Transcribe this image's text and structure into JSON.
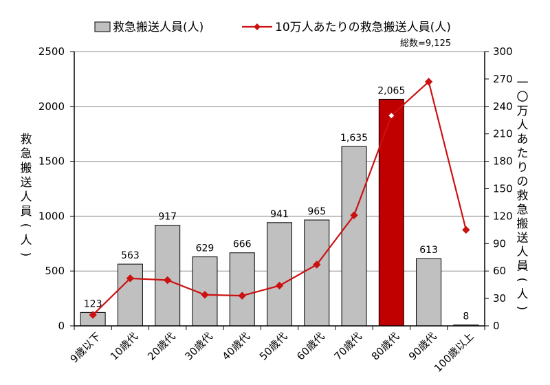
{
  "chart_data": {
    "type": "bar",
    "categories": [
      "9歳以下",
      "10歳代",
      "20歳代",
      "30歳代",
      "40歳代",
      "50歳代",
      "60歳代",
      "70歳代",
      "80歳代",
      "90歳代",
      "100歳以上"
    ],
    "series": [
      {
        "name": "救急搬送人員(人)",
        "type": "bar",
        "axis": "left",
        "values": [
          123,
          563,
          917,
          629,
          666,
          941,
          965,
          1635,
          2065,
          613,
          8
        ],
        "data_labels": [
          "123",
          "563",
          "917",
          "629",
          "666",
          "941",
          "965",
          "1,635",
          "2,065",
          "613",
          "8"
        ],
        "color": "#c0c0c0",
        "highlight_index": 8,
        "highlight_color": "#c00000"
      },
      {
        "name": "10万人あたりの救急搬送人員(人)",
        "type": "line",
        "axis": "right",
        "values": [
          12,
          52,
          50,
          34,
          33,
          44,
          67,
          121,
          230,
          267,
          105
        ],
        "color": "#cc1111",
        "marker": "diamond"
      }
    ],
    "annotation": "総数=9,125",
    "left_axis": {
      "label": "救急搬送人員(人)",
      "ylim": [
        0,
        2500
      ],
      "ticks": [
        "0",
        "500",
        "1000",
        "1500",
        "2000",
        "2500"
      ]
    },
    "right_axis": {
      "label": "一〇万人あたりの救急搬送人員(人)",
      "ylim": [
        0,
        300
      ],
      "ticks": [
        "0",
        "30",
        "60",
        "90",
        "120",
        "150",
        "180",
        "210",
        "240",
        "270",
        "300"
      ]
    },
    "legend_position": "top",
    "grid": true
  }
}
